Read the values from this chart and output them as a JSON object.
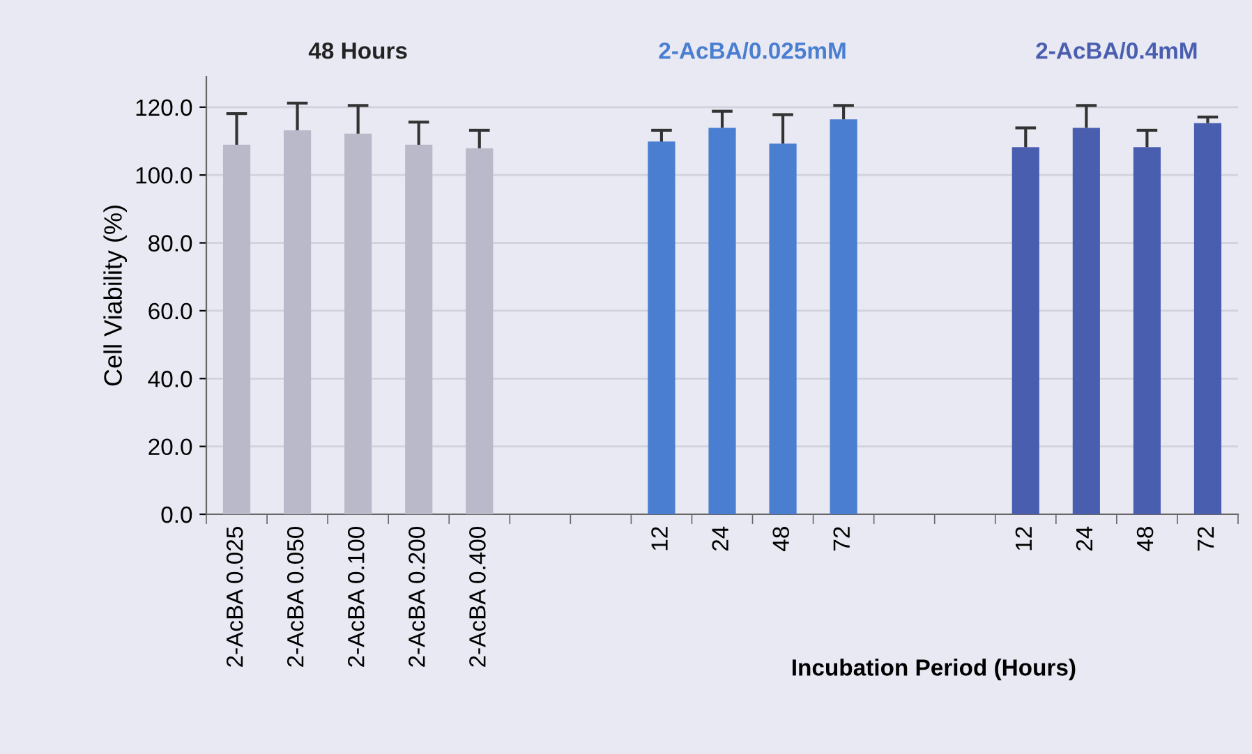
{
  "chart_data": {
    "type": "bar",
    "ylabel": "Cell Viability (%)",
    "xlabel": "Incubation Period (Hours)",
    "categories": [
      "2-AcBA 0.025",
      "2-AcBA 0.050",
      "2-AcBA 0.100",
      "2-AcBA 0.200",
      "2-AcBA 0.400",
      null,
      null,
      "12",
      "24",
      "48",
      "72",
      null,
      null,
      "12",
      "24",
      "48",
      "72"
    ],
    "series": [
      {
        "color": "#b9b9c9",
        "values": [
          108.9,
          113.2,
          112.2,
          108.9,
          107.9,
          null,
          null,
          null,
          null,
          null,
          null,
          null,
          null,
          null,
          null,
          null,
          null
        ],
        "errors": [
          [
            108.9,
            118.1
          ],
          [
            113.2,
            121.2
          ],
          [
            112.2,
            120.5
          ],
          [
            108.9,
            115.6
          ],
          [
            107.9,
            113.2
          ],
          null,
          null,
          null,
          null,
          null,
          null,
          null,
          null,
          null,
          null,
          null,
          null
        ]
      },
      {
        "name": "2-AcBA/0.025mM",
        "color": "#4a7ed0",
        "values": [
          null,
          null,
          null,
          null,
          null,
          null,
          null,
          109.9,
          113.9,
          109.3,
          116.4,
          null,
          null,
          null,
          null,
          null,
          null
        ],
        "errors": [
          null,
          null,
          null,
          null,
          null,
          null,
          null,
          [
            109.9,
            113.2
          ],
          [
            113.9,
            118.8
          ],
          [
            109.3,
            117.8
          ],
          [
            116.4,
            120.5
          ],
          null,
          null,
          null,
          null,
          null,
          null
        ]
      },
      {
        "name": "2-AcBA/0.4mM",
        "color": "#4a5eb0",
        "values": [
          null,
          null,
          null,
          null,
          null,
          null,
          null,
          null,
          null,
          null,
          null,
          null,
          null,
          108.2,
          113.9,
          108.2,
          115.3
        ],
        "errors": [
          null,
          null,
          null,
          null,
          null,
          null,
          null,
          null,
          null,
          null,
          null,
          null,
          null,
          [
            108.2,
            113.9
          ],
          [
            113.9,
            120.5
          ],
          [
            108.2,
            113.2
          ],
          [
            115.3,
            117.1
          ]
        ]
      }
    ],
    "ylim": [
      0,
      129
    ],
    "yticks": [
      {
        "value": 0,
        "label": "0.0"
      },
      {
        "value": 20,
        "label": "20.0"
      },
      {
        "value": 40,
        "label": "40.0"
      },
      {
        "value": 60,
        "label": "60.0"
      },
      {
        "value": 80,
        "label": "80.0"
      },
      {
        "value": 100,
        "label": "100.0"
      },
      {
        "value": 120,
        "label": "120.0"
      }
    ],
    "annotations": [
      "48 Hours"
    ],
    "grid": "y",
    "legend": false
  }
}
